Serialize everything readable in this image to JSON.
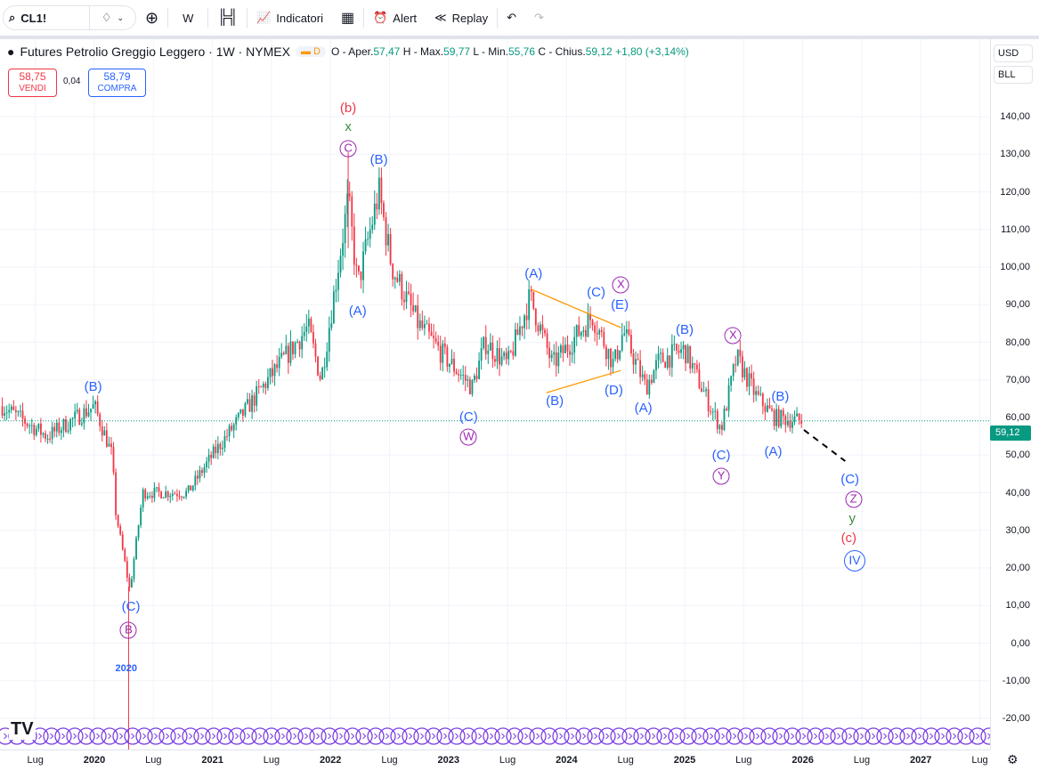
{
  "toolbar": {
    "symbol": "CL1!",
    "interval": "W",
    "indicators": "Indicatori",
    "alert": "Alert",
    "replay": "Replay"
  },
  "legend": {
    "title": "Futures Petrolio Greggio Leggero · 1W · NYMEX",
    "badge": "D",
    "o_label": "O - Aper.",
    "o": "57,47",
    "h_label": "H - Max.",
    "h": "59,77",
    "l_label": "L - Min.",
    "l": "55,76",
    "c_label": "C - Chius.",
    "c": "59,12",
    "change": "+1,80 (+3,14%)"
  },
  "trade": {
    "sell_price": "58,75",
    "sell_label": "VENDI",
    "spread": "0,04",
    "buy_price": "58,79",
    "buy_label": "COMPRA"
  },
  "right_axis": {
    "currency": "USD",
    "unit": "BLL",
    "last_price": "59,12",
    "ticks": [
      "140,00",
      "130,00",
      "120,00",
      "110,00",
      "100,00",
      "90,00",
      "80,00",
      "70,00",
      "60,00",
      "50,00",
      "40,00",
      "30,00",
      "20,00",
      "10,00",
      "0,00",
      "-10,00",
      "-20,00"
    ]
  },
  "time_axis": {
    "ticks": [
      {
        "t": 2019.5,
        "label": "Lug"
      },
      {
        "t": 2020,
        "label": "2020"
      },
      {
        "t": 2020.5,
        "label": "Lug"
      },
      {
        "t": 2021,
        "label": "2021"
      },
      {
        "t": 2021.5,
        "label": "Lug"
      },
      {
        "t": 2022,
        "label": "2022"
      },
      {
        "t": 2022.5,
        "label": "Lug"
      },
      {
        "t": 2023,
        "label": "2023"
      },
      {
        "t": 2023.5,
        "label": "Lug"
      },
      {
        "t": 2024,
        "label": "2024"
      },
      {
        "t": 2024.5,
        "label": "Lug"
      },
      {
        "t": 2025,
        "label": "2025"
      },
      {
        "t": 2025.5,
        "label": "Lug"
      },
      {
        "t": 2026,
        "label": "2026"
      },
      {
        "t": 2026.5,
        "label": "Lug"
      },
      {
        "t": 2027,
        "label": "2027"
      },
      {
        "t": 2027.5,
        "label": "Lug"
      }
    ]
  },
  "colors": {
    "up": "#089981",
    "down": "#f23645",
    "blue": "#2962ff",
    "purple": "#9c27b0",
    "red": "#f23645",
    "green": "#388e3c",
    "orange": "#ff9800",
    "price_line": "#089981"
  },
  "chart_data": {
    "type": "candlestick",
    "ylim": [
      -25,
      150
    ],
    "price_path": [
      [
        2019.22,
        63
      ],
      [
        2019.6,
        55
      ],
      [
        2020.0,
        63
      ],
      [
        2020.15,
        50
      ],
      [
        2020.18,
        35
      ],
      [
        2020.3,
        14
      ],
      [
        2020.41,
        40
      ],
      [
        2020.79,
        40
      ],
      [
        2021.0,
        50
      ],
      [
        2021.47,
        70
      ],
      [
        2021.81,
        84
      ],
      [
        2021.92,
        70
      ],
      [
        2022.15,
        118
      ],
      [
        2022.23,
        95
      ],
      [
        2022.41,
        120
      ],
      [
        2022.52,
        100
      ],
      [
        2022.74,
        85
      ],
      [
        2022.97,
        76
      ],
      [
        2023.2,
        68
      ],
      [
        2023.31,
        80
      ],
      [
        2023.5,
        74
      ],
      [
        2023.69,
        92
      ],
      [
        2023.88,
        74
      ],
      [
        2024.22,
        87
      ],
      [
        2024.4,
        74
      ],
      [
        2024.48,
        83
      ],
      [
        2024.67,
        68
      ],
      [
        2024.78,
        75
      ],
      [
        2025.0,
        78
      ],
      [
        2025.23,
        62
      ],
      [
        2025.31,
        57
      ],
      [
        2025.44,
        76
      ],
      [
        2025.6,
        66
      ],
      [
        2025.76,
        60
      ],
      [
        2026.0,
        59
      ]
    ]
  },
  "wave_labels": [
    {
      "text": "(b)",
      "t": 2022.15,
      "p": 142.1,
      "color": "red",
      "circle": false
    },
    {
      "text": "x",
      "t": 2022.15,
      "p": 137.2,
      "color": "green",
      "circle": false
    },
    {
      "text": "C",
      "t": 2022.15,
      "p": 131.5,
      "color": "purple",
      "circle": true
    },
    {
      "text": "(B)",
      "t": 2022.41,
      "p": 128.4,
      "color": "blue",
      "circle": false
    },
    {
      "text": "(A)",
      "t": 2022.23,
      "p": 88.2,
      "color": "blue",
      "circle": false
    },
    {
      "text": "(B)",
      "t": 2019.99,
      "p": 68,
      "color": "blue",
      "circle": false
    },
    {
      "text": "(C)",
      "t": 2020.31,
      "p": 9.6,
      "color": "blue",
      "circle": false
    },
    {
      "text": "B",
      "t": 2020.29,
      "p": 3.4,
      "color": "purple",
      "circle": true
    },
    {
      "text": "2020",
      "t": 2020.27,
      "p": -6.7,
      "color": "blue",
      "circle": false,
      "small": true
    },
    {
      "text": "(C)",
      "t": 2023.17,
      "p": 60,
      "color": "blue",
      "circle": false
    },
    {
      "text": "W",
      "t": 2023.17,
      "p": 54.8,
      "color": "purple",
      "circle": true
    },
    {
      "text": "(A)",
      "t": 2023.72,
      "p": 98.1,
      "color": "blue",
      "circle": false
    },
    {
      "text": "(B)",
      "t": 2023.9,
      "p": 64.3,
      "color": "blue",
      "circle": false
    },
    {
      "text": "(C)",
      "t": 2024.25,
      "p": 93.1,
      "color": "blue",
      "circle": false
    },
    {
      "text": "X",
      "t": 2024.46,
      "p": 95.3,
      "color": "purple",
      "circle": true
    },
    {
      "text": "(E)",
      "t": 2024.45,
      "p": 89.8,
      "color": "blue",
      "circle": false
    },
    {
      "text": "(D)",
      "t": 2024.4,
      "p": 67.1,
      "color": "blue",
      "circle": false
    },
    {
      "text": "(A)",
      "t": 2024.65,
      "p": 62.4,
      "color": "blue",
      "circle": false
    },
    {
      "text": "(B)",
      "t": 2025.0,
      "p": 83.2,
      "color": "blue",
      "circle": false
    },
    {
      "text": "X",
      "t": 2025.41,
      "p": 81.8,
      "color": "purple",
      "circle": true
    },
    {
      "text": "(C)",
      "t": 2025.31,
      "p": 49.8,
      "color": "blue",
      "circle": false
    },
    {
      "text": "Y",
      "t": 2025.31,
      "p": 44.4,
      "color": "purple",
      "circle": true
    },
    {
      "text": "(B)",
      "t": 2025.81,
      "p": 65.4,
      "color": "blue",
      "circle": false
    },
    {
      "text": "(A)",
      "t": 2025.75,
      "p": 50.8,
      "color": "blue",
      "circle": false
    },
    {
      "text": "(C)",
      "t": 2026.4,
      "p": 43.4,
      "color": "blue",
      "circle": false
    },
    {
      "text": "Z",
      "t": 2026.43,
      "p": 38.2,
      "color": "purple",
      "circle": true
    },
    {
      "text": "y",
      "t": 2026.42,
      "p": 33,
      "color": "green",
      "circle": false
    },
    {
      "text": "(c)",
      "t": 2026.39,
      "p": 27.8,
      "color": "red",
      "circle": false
    },
    {
      "text": "IV",
      "t": 2026.44,
      "p": 22.4,
      "color": "blue",
      "circle": true,
      "big": true
    }
  ],
  "drawings": [
    {
      "kind": "triangle-upper",
      "color": "orange",
      "from": [
        2023.7,
        94.1
      ],
      "to": [
        2024.46,
        83.9
      ]
    },
    {
      "kind": "triangle-lower",
      "color": "orange",
      "from": [
        2023.83,
        66.6
      ],
      "to": [
        2024.46,
        72.5
      ]
    },
    {
      "kind": "projection",
      "color": "#000000",
      "dashed": true,
      "from": [
        2026.01,
        56.7
      ],
      "to": [
        2026.36,
        48.4
      ]
    }
  ]
}
